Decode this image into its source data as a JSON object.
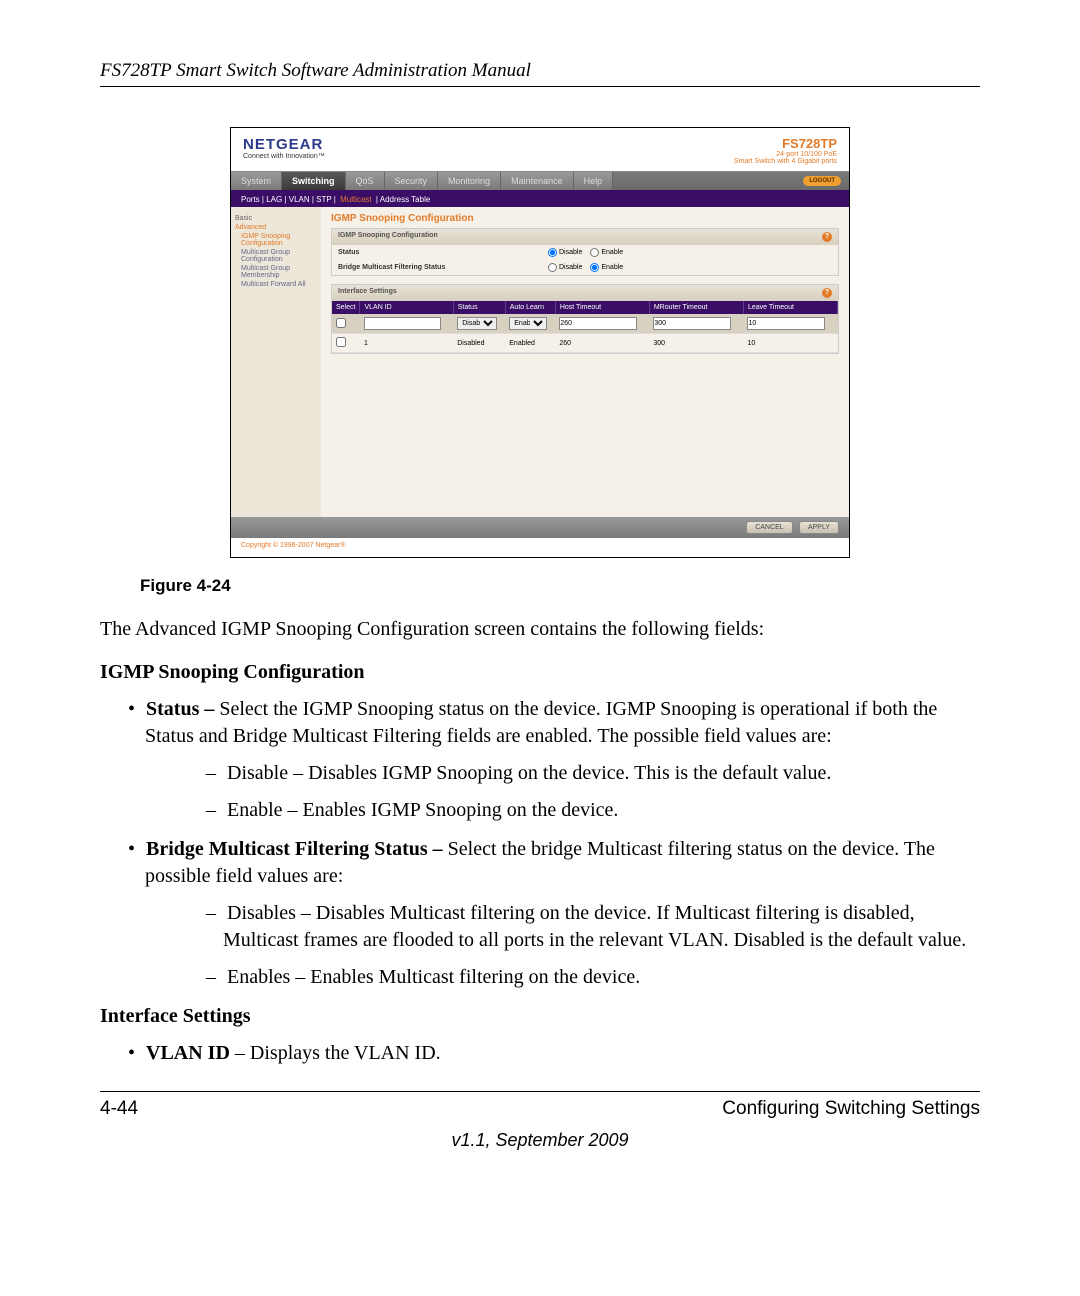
{
  "doc": {
    "header": "FS728TP Smart Switch Software Administration Manual",
    "figure_caption": "Figure 4-24",
    "intro": "The Advanced IGMP Snooping Configuration screen contains the following fields:",
    "section1_title": "IGMP Snooping Configuration",
    "bullet1_bold": "Status – ",
    "bullet1_text": "Select the IGMP Snooping status on the device. IGMP Snooping is operational if both the Status and Bridge Multicast Filtering fields are enabled. The possible field values are:",
    "dash1a": "Disable – Disables IGMP Snooping on the device. This is the default value.",
    "dash1b": "Enable – Enables IGMP Snooping on the device.",
    "bullet2_bold": "Bridge Multicast Filtering Status – ",
    "bullet2_text": "Select the bridge Multicast filtering status on the device. The possible field values are:",
    "dash2a": "Disables – Disables Multicast filtering on the device. If Multicast filtering is disabled, Multicast frames are flooded to all ports in the relevant VLAN. Disabled is the default value.",
    "dash2b": "Enables – Enables Multicast filtering on the device.",
    "section2_title": "Interface Settings",
    "bullet3_bold": "VLAN ID",
    "bullet3_text": " – Displays the VLAN ID.",
    "footer_left": "4-44",
    "footer_right": "Configuring Switching Settings",
    "version": "v1.1, September 2009"
  },
  "sc": {
    "logo": "NETGEAR",
    "logo_sub": "Connect with Innovation™",
    "model": "FS728TP",
    "model_sub1": "24-port 10/100 PoE",
    "model_sub2": "Smart Switch with 4 Gigabit ports",
    "tabs": [
      "System",
      "Switching",
      "QoS",
      "Security",
      "Monitoring",
      "Maintenance",
      "Help"
    ],
    "logout": "LOGOUT",
    "subtabs_text": "Ports | LAG | VLAN | STP | ",
    "subtabs_active": "Multicast",
    "subtabs_after": " | Address Table",
    "side_basic": "Basic",
    "side_advanced": "Advanced",
    "side_item1": "IGMP Snooping Configuration",
    "side_item2": "Multicast Group Configuration",
    "side_item3": "Multicast Group Membership",
    "side_item4": "Multicast Forward All",
    "main_title": "IGMP Snooping Configuration",
    "panel1_title": "IGMP Snooping Configuration",
    "panel1_row1": "Status",
    "panel1_row2": "Bridge Multicast Filtering Status",
    "opt_disable": "Disable",
    "opt_enable": "Enable",
    "panel2_title": "Interface Settings",
    "th": [
      "Select",
      "VLAN ID",
      "Status",
      "Auto Learn",
      "Host Timeout",
      "MRouter Timeout",
      "Leave Timeout"
    ],
    "input_row": {
      "status": "Disable",
      "auto": "Enable",
      "host": "260",
      "mrouter": "300",
      "leave": "10"
    },
    "data_row": {
      "vlan": "1",
      "status": "Disabled",
      "auto": "Enabled",
      "host": "260",
      "mrouter": "300",
      "leave": "10"
    },
    "btn_cancel": "CANCEL",
    "btn_apply": "APPLY",
    "copyright": "Copyright © 1996-2007 Netgear®"
  }
}
